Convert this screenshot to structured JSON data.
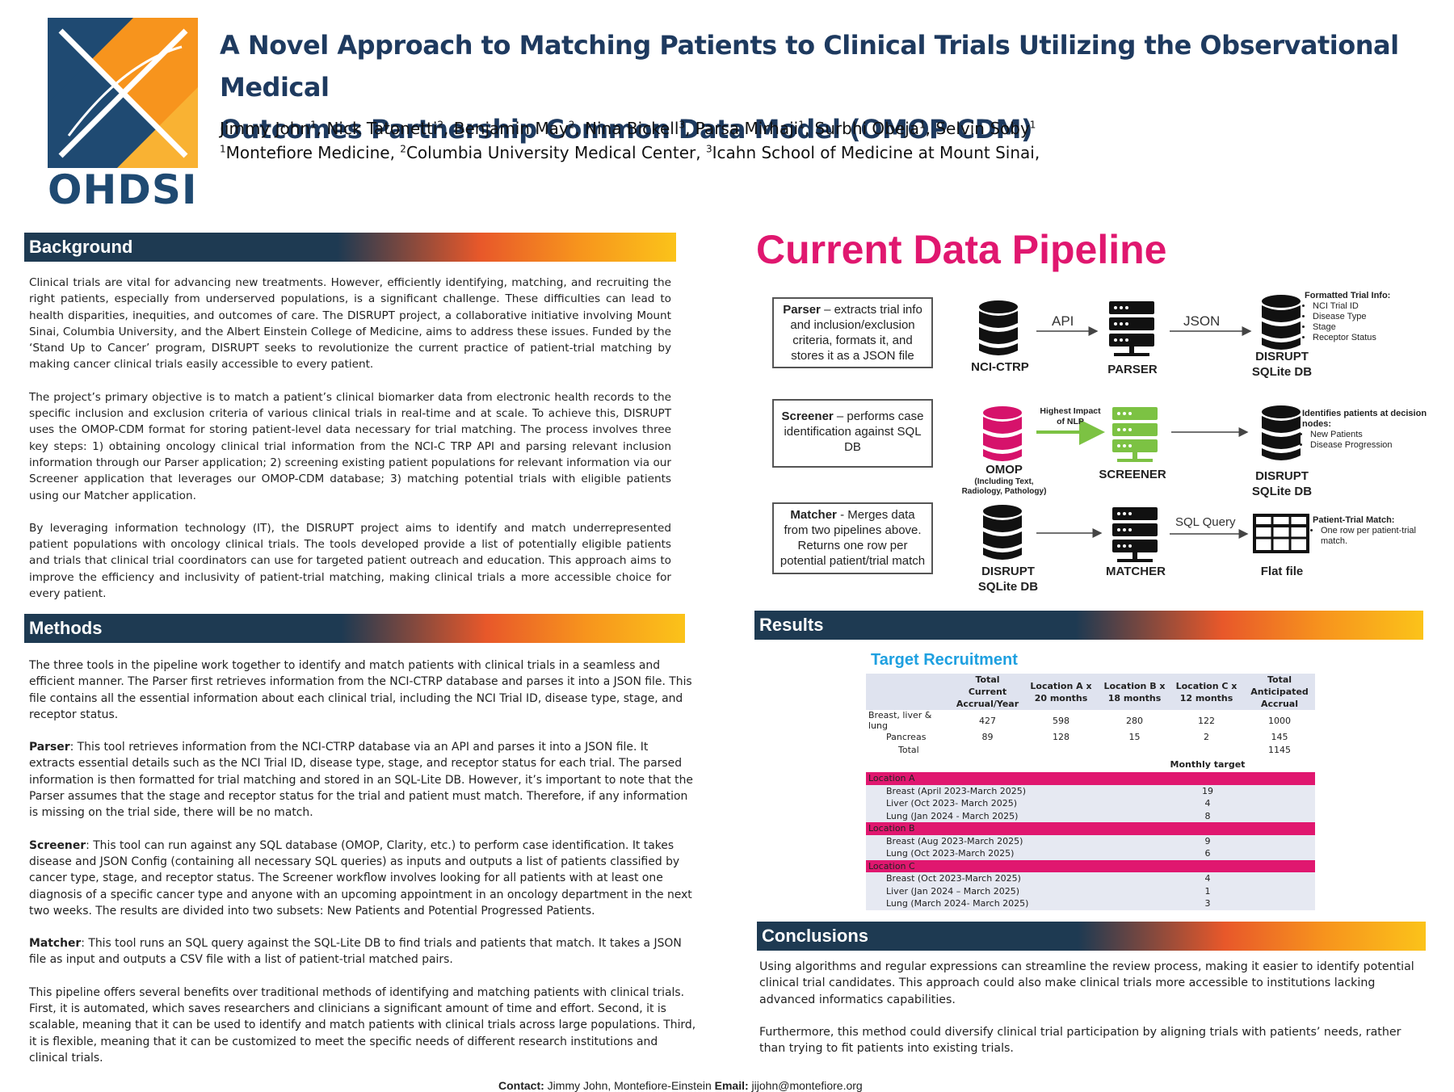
{
  "header": {
    "logo_text": "OHDSI",
    "title_line1": "A Novel Approach to Matching Patients to Clinical Trials Utilizing the Observational Medical",
    "title_line2": "Outcomes Partnership Common Data Model (OMOP CDM)",
    "authors": [
      {
        "name": "Jimmy John",
        "sup": "1"
      },
      {
        "name": "Nick Tatonetti",
        "sup": "2"
      },
      {
        "name": "Benjamin May",
        "sup": "2"
      },
      {
        "name": "Nina Bickell",
        "sup": "3"
      },
      {
        "name": "Parsa Mirhaji",
        "sup": "1"
      },
      {
        "name": "Surbhi Obeja",
        "sup": "1"
      },
      {
        "name": "Selvin Soby",
        "sup": "1"
      }
    ],
    "affiliations": [
      {
        "sup": "1",
        "name": "Montefiore Medicine,"
      },
      {
        "sup": "2",
        "name": "Columbia University Medical Center,"
      },
      {
        "sup": "3",
        "name": "Icahn School of Medicine at Mount Sinai,"
      }
    ]
  },
  "background": {
    "heading": "Background",
    "p1": "Clinical trials are vital for advancing new treatments. However, efficiently identifying, matching, and recruiting the right patients, especially from underserved populations, is a significant challenge. These difficulties can lead to health disparities, inequities, and outcomes of care. The DISRUPT project, a collaborative initiative involving Mount Sinai, Columbia University, and the Albert Einstein College of Medicine, aims to address these issues. Funded by the ‘Stand Up to Cancer’ program, DISRUPT seeks to revolutionize the current practice of patient-trial matching by making cancer clinical trials easily accessible to every patient.",
    "p2": "The project’s primary objective is to match a patient’s clinical biomarker data from electronic health records to the specific inclusion and exclusion criteria of various clinical trials in real-time and at scale. To achieve this, DISRUPT uses the OMOP-CDM format for storing patient-level data necessary for trial matching. The process involves three key steps: 1) obtaining oncology clinical trial information from the NCI-C TRP API and parsing relevant inclusion information through our Parser application; 2) screening existing patient populations for relevant information via our Screener application that leverages our OMOP-CDM database; 3) matching potential trials with eligible patients using our Matcher application.",
    "p3": "By leveraging information technology (IT), the DISRUPT project aims to identify and match underrepresented patient populations with oncology clinical trials. The tools developed provide a list of potentially eligible patients and trials that clinical trial coordinators can use for targeted patient outreach and education. This approach aims to improve the efficiency and inclusivity of patient-trial matching, making clinical trials a more accessible choice for every patient."
  },
  "methods": {
    "heading": "Methods",
    "p1": "The three tools in the pipeline work together to identify and match patients with clinical trials in a seamless and efficient manner. The Parser first retrieves information from the NCI-CTRP database and parses it into a JSON file. This file contains all the essential information about each clinical trial, including the NCI Trial ID, disease type, stage, and receptor status.",
    "parser_label": "Parser",
    "parser_text": ": This tool retrieves information from the NCI-CTRP database via an API and parses it into a JSON file. It extracts essential details such as the NCI Trial ID, disease type, stage, and receptor status for each trial. The parsed information is then formatted for trial matching and stored in an SQL-Lite DB. However, it’s important to note that the Parser assumes that the stage and receptor status for the trial and patient must match. Therefore, if any information is missing on the trial side, there will be no match.",
    "screener_label": "Screener",
    "screener_text": ": This tool can run against any SQL database (OMOP, Clarity, etc.) to perform case identification. It takes disease and JSON Config (containing all necessary SQL queries) as inputs and outputs a list of patients classified by cancer type, stage, and receptor status. The Screener workflow involves looking for all patients with at least one diagnosis of a specific cancer type and anyone with an upcoming appointment in an oncology department in the next two weeks. The results are divided into two subsets: New Patients and Potential Progressed Patients.",
    "matcher_label": "Matcher",
    "matcher_text": ": This tool runs an SQL query against the SQL-Lite DB to find trials and patients that match. It takes a JSON file as input and outputs a CSV file with a list of patient-trial matched pairs.",
    "p5": "This pipeline offers several benefits over traditional methods of identifying and matching patients with clinical trials. First, it is automated, which saves researchers and clinicians a significant amount of time and effort. Second, it is scalable, meaning that it can be used to identify and match patients with clinical trials across large populations. Third, it is flexible, meaning that it can be customized to meet the specific needs of different research institutions and clinical trials."
  },
  "pipeline": {
    "title": "Current Data Pipeline",
    "parser_box_bold": "Parser",
    "parser_box_text": " – extracts trial info and inclusion/exclusion criteria, formats it, and stores it as a JSON file",
    "screener_box_bold": "Screener",
    "screener_box_text": " – performs case identification against SQL DB",
    "matcher_box_bold": "Matcher",
    "matcher_box_text": " - Merges data from two pipelines above. Returns one row per potential patient/trial match",
    "row1": {
      "src": "NCI-CTRP",
      "arrow1": "API",
      "mid": "PARSER",
      "arrow2": "JSON",
      "dst1": "DISRUPT",
      "dst2": "SQLite DB"
    },
    "row1_note_title": "Formatted Trial Info:",
    "row1_note_items": [
      "NCI Trial ID",
      "Disease Type",
      "Stage",
      "Receptor Status"
    ],
    "row2": {
      "src": "OMOP",
      "src_sub1": "(Including Text,",
      "src_sub2": "Radiology, Pathology)",
      "arrow1a": "Highest Impact",
      "arrow1b": "of NLP",
      "mid": "SCREENER",
      "dst1": "DISRUPT",
      "dst2": "SQLite DB"
    },
    "row2_note_title": "Identifies patients at decision nodes:",
    "row2_note_items": [
      "New Patients",
      "Disease Progression"
    ],
    "row3": {
      "src1": "DISRUPT",
      "src2": "SQLite DB",
      "mid": "MATCHER",
      "arrow2": "SQL Query",
      "dst": "Flat file"
    },
    "row3_note_title": "Patient-Trial Match:",
    "row3_note_items": [
      "One row per patient-trial match."
    ],
    "colors": {
      "db": "#111111",
      "omop": "#d6126b",
      "screener": "#7cc243",
      "title": "#e0176f"
    }
  },
  "results": {
    "heading": "Results",
    "table_title": "Target Recruitment",
    "columns": [
      "",
      "Total Current Accrual/Year",
      "Location A x 20 months",
      "Location B x 18 months",
      "Location C x 12 months",
      "Total Anticipated Accrual"
    ],
    "rows": [
      [
        "Breast, liver & lung",
        "427",
        "598",
        "280",
        "122",
        "1000"
      ],
      [
        "Pancreas",
        "89",
        "128",
        "15",
        "2",
        "145"
      ],
      [
        "Total",
        "",
        "",
        "",
        "",
        "1145"
      ]
    ],
    "monthly_header": "Monthly target",
    "locations": [
      {
        "name": "Location A",
        "items": [
          [
            "Breast (April 2023-March 2025)",
            "19"
          ],
          [
            "Liver (Oct 2023- March 2025)",
            "4"
          ],
          [
            "Lung (Jan 2024 -  March 2025)",
            "8"
          ]
        ]
      },
      {
        "name": "Location B",
        "items": [
          [
            "Breast (Aug 2023-March 2025)",
            "9"
          ],
          [
            "Lung (Oct 2023-March 2025)",
            "6"
          ]
        ]
      },
      {
        "name": "Location C",
        "items": [
          [
            "Breast (Oct 2023-March 2025)",
            "4"
          ],
          [
            "Liver (Jan 2024 – March 2025)",
            "1"
          ],
          [
            "Lung (March 2024- March 2025)",
            "3"
          ]
        ]
      }
    ]
  },
  "conclusions": {
    "heading": "Conclusions",
    "p1": "Using algorithms and regular expressions can streamline the review process, making it easier to identify potential clinical trial candidates. This approach could also make clinical trials more accessible to institutions lacking advanced informatics capabilities.",
    "p2": "Furthermore, this method could diversify clinical trial participation by aligning trials with patients’ needs, rather than trying to fit patients into existing trials."
  },
  "footer": {
    "contact_label": "Contact:",
    "contact_name": "Jimmy John, Montefiore-Einstein",
    "email_label": "Email:",
    "email": "jijohn@montefiore.org"
  }
}
